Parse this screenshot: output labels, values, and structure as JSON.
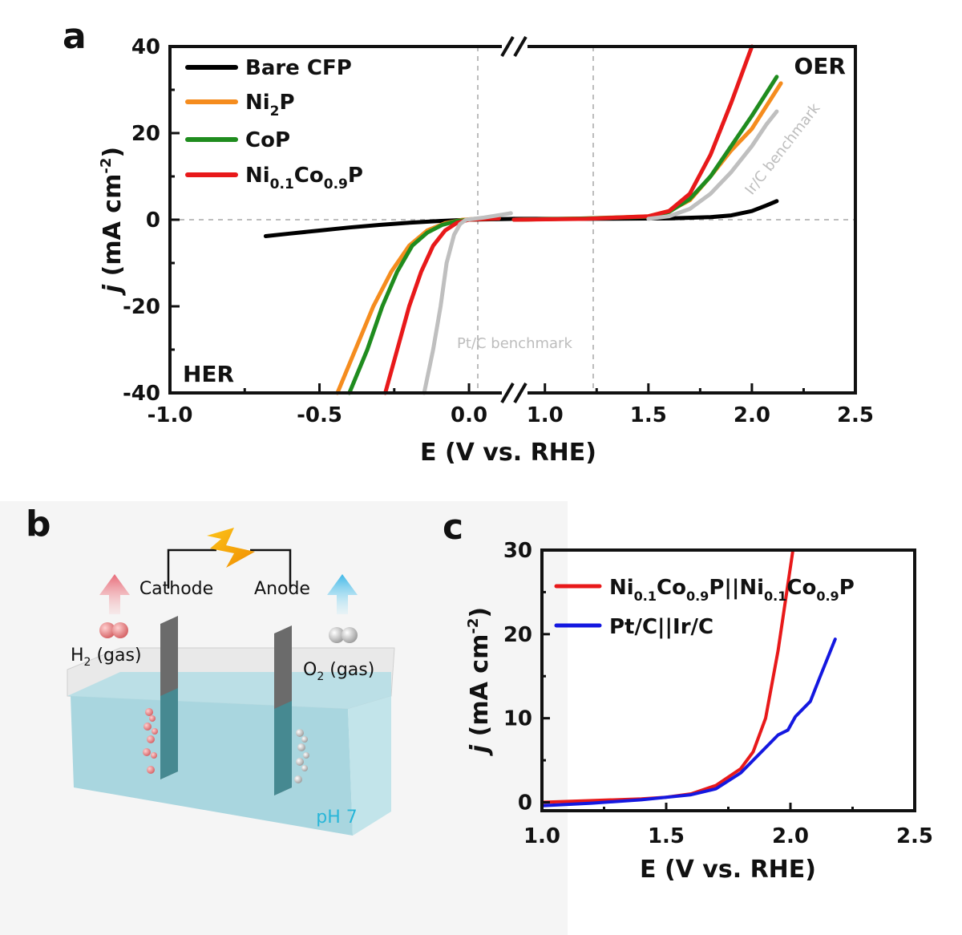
{
  "panels": {
    "a": "a",
    "b": "b",
    "c": "c"
  },
  "chart_data": [
    {
      "id": "a",
      "type": "line",
      "xlabel": "E (V vs. RHE)",
      "ylabel_italic": "j",
      "ylabel_rest": " (mA cm",
      "ylabel_sup": "-2",
      "ylabel_close": ")",
      "ylim": [
        -40,
        40
      ],
      "y_ticks": [
        -40,
        -20,
        0,
        20,
        40
      ],
      "x_left_range": [
        -1.0,
        0.15
      ],
      "x_right_range": [
        0.85,
        2.5
      ],
      "x_ticks_left": [
        "-1.0",
        "-0.5",
        "0.0"
      ],
      "x_ticks_right": [
        "1.0",
        "1.5",
        "2.0",
        "2.5"
      ],
      "x_tick_values_left": [
        -1.0,
        -0.5,
        0.0
      ],
      "x_tick_values_right": [
        1.0,
        1.5,
        2.0,
        2.5
      ],
      "axis_break": "//",
      "annotations": {
        "her": "HER",
        "oer": "OER",
        "ptc": "Pt/C benchmark",
        "irc": "Ir/C benchmark"
      },
      "legend_position": "top-left",
      "series": [
        {
          "name": "Bare CFP",
          "color": "#000000",
          "her": [
            [
              -0.68,
              -3.8
            ],
            [
              -0.6,
              -3.2
            ],
            [
              -0.5,
              -2.5
            ],
            [
              -0.4,
              -1.8
            ],
            [
              -0.3,
              -1.2
            ],
            [
              -0.2,
              -0.7
            ],
            [
              -0.1,
              -0.3
            ],
            [
              0.0,
              0.0
            ],
            [
              0.15,
              0.2
            ]
          ],
          "oer": [
            [
              0.85,
              0.2
            ],
            [
              1.2,
              0.2
            ],
            [
              1.6,
              0.3
            ],
            [
              1.8,
              0.6
            ],
            [
              1.9,
              1.0
            ],
            [
              2.0,
              2.0
            ],
            [
              2.07,
              3.3
            ],
            [
              2.12,
              4.3
            ]
          ]
        },
        {
          "name": "Ni",
          "sub": "2",
          "name_after": "P",
          "color": "#f58c1e",
          "her": [
            [
              -0.44,
              -40
            ],
            [
              -0.38,
              -30
            ],
            [
              -0.32,
              -20
            ],
            [
              -0.26,
              -12
            ],
            [
              -0.2,
              -6
            ],
            [
              -0.14,
              -2.5
            ],
            [
              -0.08,
              -0.8
            ],
            [
              -0.02,
              0.0
            ],
            [
              0.02,
              0.2
            ],
            [
              0.1,
              0.4
            ]
          ],
          "oer": [
            [
              0.85,
              0.0
            ],
            [
              1.2,
              0.3
            ],
            [
              1.5,
              0.8
            ],
            [
              1.6,
              2.0
            ],
            [
              1.7,
              4.5
            ],
            [
              1.8,
              10
            ],
            [
              1.9,
              16
            ],
            [
              2.0,
              21
            ],
            [
              2.08,
              27
            ],
            [
              2.14,
              31.5
            ]
          ]
        },
        {
          "name": "CoP",
          "color": "#1f8c1e",
          "her": [
            [
              -0.4,
              -40
            ],
            [
              -0.34,
              -30
            ],
            [
              -0.29,
              -20
            ],
            [
              -0.24,
              -12
            ],
            [
              -0.19,
              -6
            ],
            [
              -0.14,
              -3
            ],
            [
              -0.09,
              -1.2
            ],
            [
              -0.04,
              -0.3
            ],
            [
              0.0,
              0.0
            ],
            [
              0.1,
              0.3
            ]
          ],
          "oer": [
            [
              0.85,
              0.0
            ],
            [
              1.2,
              0.3
            ],
            [
              1.5,
              0.7
            ],
            [
              1.6,
              1.8
            ],
            [
              1.7,
              4.8
            ],
            [
              1.8,
              10
            ],
            [
              1.9,
              17
            ],
            [
              2.0,
              24
            ],
            [
              2.08,
              30
            ],
            [
              2.12,
              33
            ]
          ]
        },
        {
          "name": "Ni",
          "sub": "0.1",
          "name_mid": "Co",
          "sub2": "0.9",
          "name_after": "P",
          "color": "#e8191a",
          "her": [
            [
              -0.28,
              -40
            ],
            [
              -0.24,
              -30
            ],
            [
              -0.2,
              -20
            ],
            [
              -0.16,
              -12
            ],
            [
              -0.12,
              -6
            ],
            [
              -0.08,
              -2.5
            ],
            [
              -0.04,
              -0.7
            ],
            [
              0.0,
              0.0
            ],
            [
              0.1,
              0.3
            ]
          ],
          "oer": [
            [
              0.85,
              0.0
            ],
            [
              1.2,
              0.2
            ],
            [
              1.5,
              0.8
            ],
            [
              1.6,
              2.0
            ],
            [
              1.65,
              4.0
            ],
            [
              1.7,
              6.0
            ],
            [
              1.8,
              15
            ],
            [
              1.9,
              27
            ],
            [
              2.0,
              40
            ]
          ]
        },
        {
          "name": "Pt/C benchmark",
          "color": "#bfbfbf",
          "in_legend": false,
          "her": [
            [
              -0.15,
              -40
            ],
            [
              -0.12,
              -30
            ],
            [
              -0.095,
              -20
            ],
            [
              -0.075,
              -10
            ],
            [
              -0.05,
              -3.5
            ],
            [
              -0.03,
              -1.0
            ],
            [
              -0.01,
              0.0
            ],
            [
              0.05,
              0.5
            ],
            [
              0.14,
              1.5
            ]
          ],
          "oer": []
        },
        {
          "name": "Ir/C benchmark",
          "color": "#bfbfbf",
          "in_legend": false,
          "her": [],
          "oer": [
            [
              1.5,
              0.2
            ],
            [
              1.6,
              0.8
            ],
            [
              1.7,
              2.5
            ],
            [
              1.8,
              6.0
            ],
            [
              1.9,
              11
            ],
            [
              2.0,
              17
            ],
            [
              2.07,
              22
            ],
            [
              2.12,
              25
            ]
          ]
        }
      ]
    },
    {
      "id": "c",
      "type": "line",
      "xlabel": "E (V vs. RHE)",
      "ylabel_italic": "j",
      "ylabel_rest": " (mA cm",
      "ylabel_sup": "-2",
      "ylabel_close": ")",
      "xlim": [
        1.0,
        2.5
      ],
      "ylim": [
        -1,
        30
      ],
      "x_ticks": [
        "1.0",
        "1.5",
        "2.0",
        "2.5"
      ],
      "x_tick_values": [
        1.0,
        1.5,
        2.0,
        2.5
      ],
      "y_ticks": [
        "0",
        "10",
        "20",
        "30"
      ],
      "y_tick_values": [
        0,
        10,
        20,
        30
      ],
      "legend_position": "top-left",
      "series": [
        {
          "name_parts": [
            "Ni",
            "0.1",
            "Co",
            "0.9",
            "P||Ni",
            "0.1",
            "Co",
            "0.9",
            "P"
          ],
          "color": "#e8191a",
          "points": [
            [
              1.0,
              0.0
            ],
            [
              1.2,
              0.2
            ],
            [
              1.4,
              0.4
            ],
            [
              1.5,
              0.6
            ],
            [
              1.6,
              1.0
            ],
            [
              1.7,
              2.0
            ],
            [
              1.8,
              4.0
            ],
            [
              1.85,
              6.0
            ],
            [
              1.9,
              10
            ],
            [
              1.95,
              18
            ],
            [
              2.0,
              28
            ],
            [
              2.01,
              30
            ]
          ]
        },
        {
          "name": "Pt/C||Ir/C",
          "color": "#1418e0",
          "points": [
            [
              1.0,
              -0.4
            ],
            [
              1.2,
              -0.1
            ],
            [
              1.4,
              0.3
            ],
            [
              1.6,
              0.9
            ],
            [
              1.7,
              1.6
            ],
            [
              1.8,
              3.5
            ],
            [
              1.9,
              6.5
            ],
            [
              1.95,
              8.0
            ],
            [
              1.99,
              8.6
            ],
            [
              2.02,
              10.2
            ],
            [
              2.08,
              12.0
            ],
            [
              2.12,
              15.0
            ],
            [
              2.18,
              19.4
            ]
          ]
        }
      ]
    }
  ],
  "schematic": {
    "cathode": "Cathode",
    "anode": "Anode",
    "h2_prefix": "H",
    "h2_sub": "2",
    "h2_suffix": " (gas)",
    "o2_prefix": "O",
    "o2_sub": "2",
    "o2_suffix": " (gas)",
    "ph": "pH 7"
  }
}
